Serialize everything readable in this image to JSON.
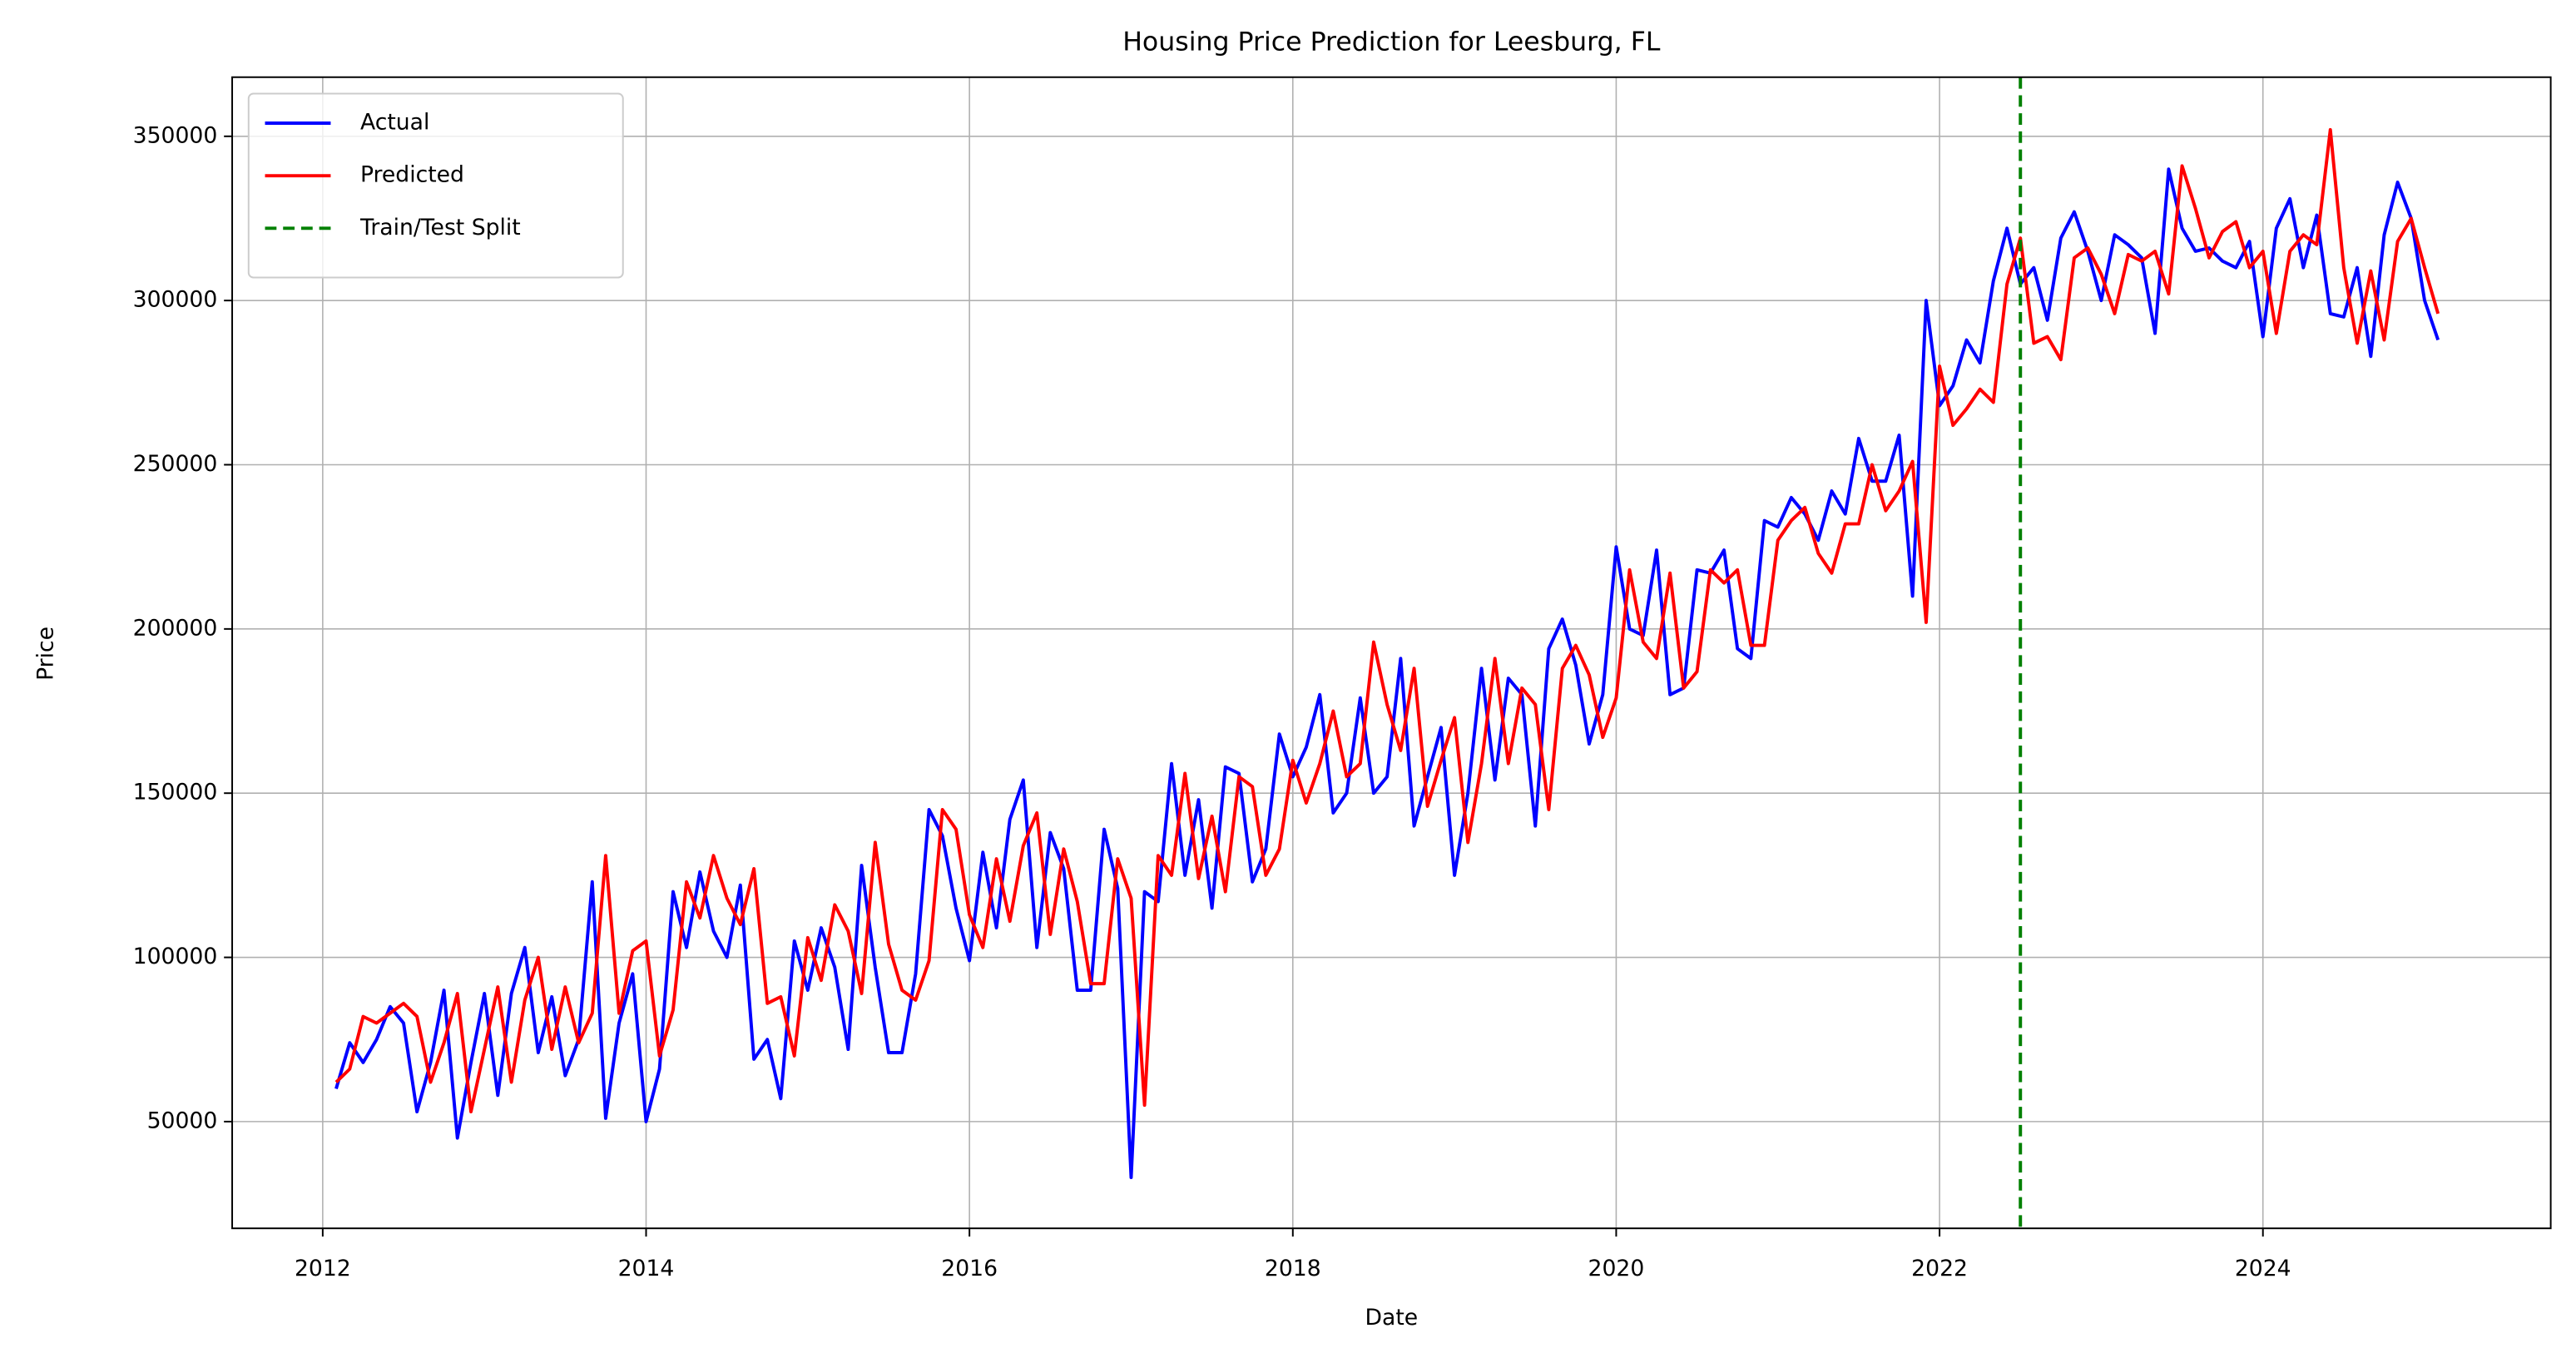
{
  "chart_data": {
    "type": "line",
    "title": "Housing Price Prediction for Leesburg, FL",
    "x_label": "Date",
    "y_label": "Price",
    "x": [
      2012.083,
      2012.167,
      2012.25,
      2012.333,
      2012.417,
      2012.5,
      2012.583,
      2012.667,
      2012.75,
      2012.833,
      2012.917,
      2013,
      2013.083,
      2013.167,
      2013.25,
      2013.333,
      2013.417,
      2013.5,
      2013.583,
      2013.667,
      2013.75,
      2013.833,
      2013.917,
      2014,
      2014.083,
      2014.167,
      2014.25,
      2014.333,
      2014.417,
      2014.5,
      2014.583,
      2014.667,
      2014.75,
      2014.833,
      2014.917,
      2015,
      2015.083,
      2015.167,
      2015.25,
      2015.333,
      2015.417,
      2015.5,
      2015.583,
      2015.667,
      2015.75,
      2015.833,
      2015.917,
      2016,
      2016.083,
      2016.167,
      2016.25,
      2016.333,
      2016.417,
      2016.5,
      2016.583,
      2016.667,
      2016.75,
      2016.833,
      2016.917,
      2017,
      2017.083,
      2017.167,
      2017.25,
      2017.333,
      2017.417,
      2017.5,
      2017.583,
      2017.667,
      2017.75,
      2017.833,
      2017.917,
      2018,
      2018.083,
      2018.167,
      2018.25,
      2018.333,
      2018.417,
      2018.5,
      2018.583,
      2018.667,
      2018.75,
      2018.833,
      2018.917,
      2019,
      2019.083,
      2019.167,
      2019.25,
      2019.333,
      2019.417,
      2019.5,
      2019.583,
      2019.667,
      2019.75,
      2019.833,
      2019.917,
      2020,
      2020.083,
      2020.167,
      2020.25,
      2020.333,
      2020.417,
      2020.5,
      2020.583,
      2020.667,
      2020.75,
      2020.833,
      2020.917,
      2021,
      2021.083,
      2021.167,
      2021.25,
      2021.333,
      2021.417,
      2021.5,
      2021.583,
      2021.667,
      2021.75,
      2021.833,
      2021.917,
      2022,
      2022.083,
      2022.167,
      2022.25,
      2022.333,
      2022.417,
      2022.5,
      2022.583,
      2022.667,
      2022.75,
      2022.833,
      2022.917,
      2023,
      2023.083,
      2023.167,
      2023.25,
      2023.333,
      2023.417,
      2023.5,
      2023.583,
      2023.667,
      2023.75,
      2023.833,
      2023.917,
      2024,
      2024.083,
      2024.167,
      2024.25,
      2024.333,
      2024.417,
      2024.5,
      2024.583,
      2024.667,
      2024.75,
      2024.833,
      2024.917,
      2025,
      2025.083
    ],
    "series": [
      {
        "name": "Actual",
        "color": "#0000ff",
        "values": [
          60000,
          74000,
          68000,
          75000,
          85000,
          80000,
          53000,
          68000,
          90000,
          45000,
          68000,
          89000,
          58000,
          89000,
          103000,
          71000,
          88000,
          64000,
          75000,
          123000,
          51000,
          80000,
          95000,
          50000,
          66000,
          120000,
          103000,
          126000,
          108000,
          100000,
          122000,
          69000,
          75000,
          57000,
          105000,
          90000,
          109000,
          97000,
          72000,
          128000,
          97000,
          71000,
          71000,
          95000,
          145000,
          137000,
          115000,
          99000,
          132000,
          109000,
          142000,
          154000,
          103000,
          138000,
          127000,
          90000,
          90000,
          139000,
          121000,
          33000,
          120000,
          117000,
          159000,
          125000,
          148000,
          115000,
          158000,
          156000,
          123000,
          133000,
          168000,
          155000,
          164000,
          180000,
          144000,
          150000,
          179000,
          150000,
          155000,
          191000,
          140000,
          155000,
          170000,
          125000,
          150000,
          188000,
          154000,
          185000,
          180000,
          140000,
          194000,
          203000,
          189000,
          165000,
          180000,
          225000,
          200000,
          198000,
          224000,
          180000,
          182000,
          218000,
          217000,
          224000,
          194000,
          191000,
          233000,
          231000,
          240000,
          235000,
          227000,
          242000,
          235000,
          258000,
          245000,
          245000,
          259000,
          210000,
          300000,
          268000,
          274000,
          288000,
          281000,
          306000,
          322000,
          305000,
          310000,
          294000,
          319000,
          327000,
          315000,
          300000,
          320000,
          317000,
          313000,
          290000,
          340000,
          322000,
          315000,
          316000,
          312000,
          310000,
          318000,
          289000,
          322000,
          331000,
          310000,
          326000,
          296000,
          295000,
          310000,
          283000,
          320000,
          336000,
          325000,
          300000,
          288000
        ]
      },
      {
        "name": "Predicted",
        "color": "#ff0000",
        "values": [
          62000,
          66000,
          82000,
          80000,
          83000,
          86000,
          82000,
          62000,
          74000,
          89000,
          53000,
          72000,
          91000,
          62000,
          87000,
          100000,
          72000,
          91000,
          74000,
          83000,
          131000,
          83000,
          102000,
          105000,
          70000,
          84000,
          123000,
          112000,
          131000,
          118000,
          110000,
          127000,
          86000,
          88000,
          70000,
          106000,
          93000,
          116000,
          108000,
          89000,
          135000,
          104000,
          90000,
          87000,
          99000,
          145000,
          139000,
          113000,
          103000,
          130000,
          111000,
          134000,
          144000,
          107000,
          133000,
          117000,
          92000,
          92000,
          130000,
          118000,
          55000,
          131000,
          125000,
          156000,
          124000,
          143000,
          120000,
          155000,
          152000,
          125000,
          133000,
          160000,
          147000,
          159000,
          175000,
          155000,
          159000,
          196000,
          177000,
          163000,
          188000,
          146000,
          160000,
          173000,
          135000,
          159000,
          191000,
          159000,
          182000,
          177000,
          145000,
          188000,
          195000,
          186000,
          167000,
          179000,
          218000,
          196000,
          191000,
          217000,
          182000,
          187000,
          218000,
          214000,
          218000,
          195000,
          195000,
          227000,
          233000,
          237000,
          223000,
          217000,
          232000,
          232000,
          250000,
          236000,
          242000,
          251000,
          202000,
          280000,
          262000,
          267000,
          273000,
          269000,
          305000,
          319000,
          287000,
          289000,
          282000,
          313000,
          316000,
          308000,
          296000,
          314000,
          312000,
          315000,
          302000,
          341000,
          328000,
          313000,
          321000,
          324000,
          310000,
          315000,
          290000,
          315000,
          320000,
          317000,
          352000,
          310000,
          287000,
          309000,
          288000,
          318000,
          325000,
          310000,
          296000
        ]
      }
    ],
    "vlines": [
      {
        "name": "Train/Test Split",
        "x": 2022.5,
        "color": "#008000"
      }
    ],
    "xlim": [
      2011.44,
      2025.78
    ],
    "xticks": [
      2012,
      2014,
      2016,
      2018,
      2020,
      2022,
      2024
    ],
    "ylim": [
      17500,
      368000
    ],
    "yticks": [
      50000,
      100000,
      150000,
      200000,
      250000,
      300000,
      350000
    ],
    "grid": true,
    "legend": "upper left"
  }
}
